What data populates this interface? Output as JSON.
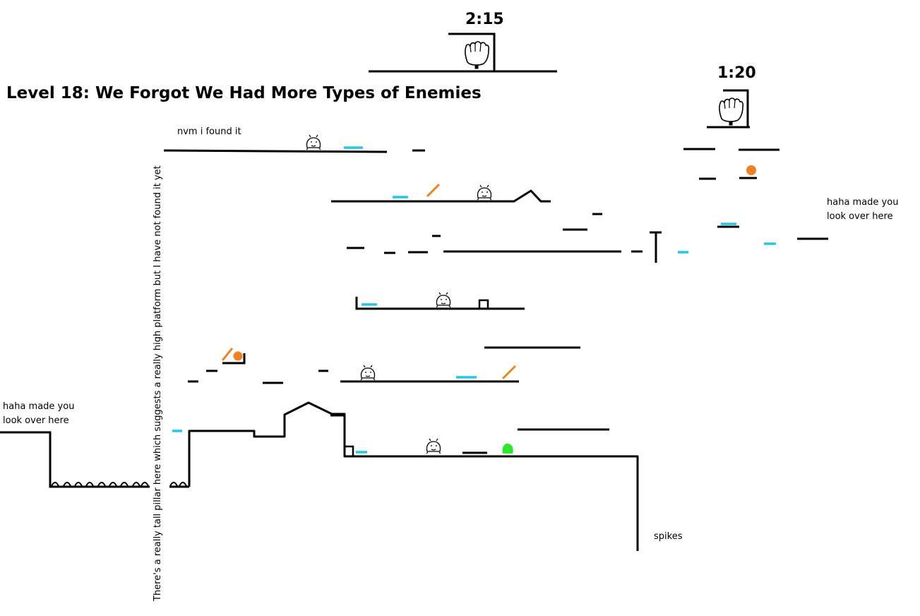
{
  "level": {
    "title": "Level 18: We Forgot We Had More Types of Enemies"
  },
  "timers": [
    {
      "label": "2:15"
    },
    {
      "label": "1:20"
    }
  ],
  "notes": {
    "found_it": "nvm i found it",
    "look_over_here_left_line1": "haha made you",
    "look_over_here_left_line2": "look over here",
    "look_over_here_right_line1": "haha made you",
    "look_over_here_right_line2": "look over here",
    "spikes": "spikes",
    "pillar": "There's a really tall pillar here which suggests a really high platform but I have not found it yet"
  },
  "colors": {
    "platform": "#000000",
    "ice": "#22c8e6",
    "spring": "#f08020",
    "coin": "#f08020",
    "goal_blob": "#2ee62e"
  },
  "icons": {
    "enemy": "smiley-creature-icon",
    "goal": "glove-icon",
    "spring": "diagonal-spring-icon",
    "coin": "orange-orb-icon",
    "spike": "spike-hump-icon",
    "goal_blob": "green-blob-icon"
  }
}
